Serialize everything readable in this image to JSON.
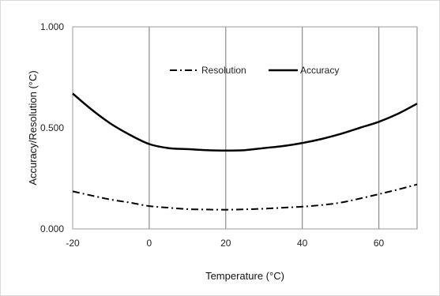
{
  "chart_data": {
    "type": "line",
    "title": "",
    "xlabel": "Temperature (°C)",
    "ylabel": "Accuracy/Resolution (°C)",
    "xlim": [
      -20,
      70
    ],
    "ylim": [
      0,
      1
    ],
    "x_ticks": [
      -20,
      0,
      20,
      40,
      60
    ],
    "x_tick_labels": [
      "-20",
      "0",
      "20",
      "40",
      "60"
    ],
    "y_ticks": [
      0,
      0.5,
      1
    ],
    "y_tick_labels": [
      "0.000",
      "0.500",
      "1.000"
    ],
    "grid": "vertical",
    "legend_position": "top-center",
    "x": [
      -20,
      -15,
      -10,
      -5,
      0,
      5,
      10,
      15,
      20,
      25,
      30,
      35,
      40,
      45,
      50,
      55,
      60,
      65,
      70
    ],
    "series": [
      {
        "name": "Resolution",
        "style": "dash-dot",
        "color": "#000000",
        "values": [
          0.186,
          0.165,
          0.145,
          0.13,
          0.113,
          0.105,
          0.098,
          0.096,
          0.095,
          0.097,
          0.1,
          0.105,
          0.11,
          0.118,
          0.13,
          0.15,
          0.172,
          0.195,
          0.22
        ]
      },
      {
        "name": "Accuracy",
        "style": "solid",
        "color": "#000000",
        "values": [
          0.67,
          0.59,
          0.52,
          0.465,
          0.42,
          0.4,
          0.395,
          0.39,
          0.388,
          0.39,
          0.4,
          0.41,
          0.425,
          0.445,
          0.47,
          0.5,
          0.53,
          0.57,
          0.62
        ]
      }
    ]
  }
}
